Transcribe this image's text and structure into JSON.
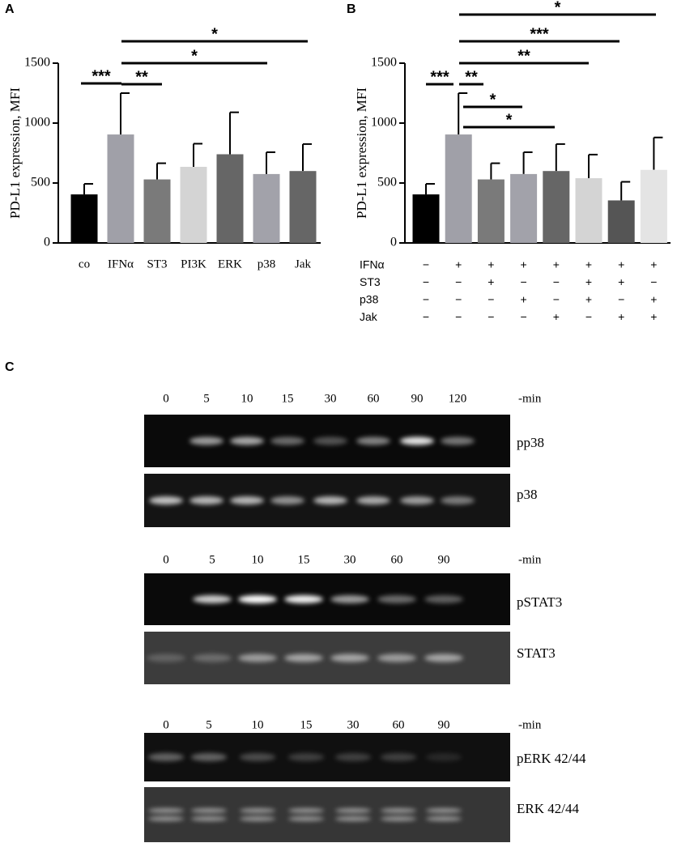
{
  "chart_data": [
    {
      "type": "bar",
      "panel": "A",
      "y_label": "PD-L1 expression, MFI",
      "categories": [
        "co",
        "IFNα",
        "ST3",
        "PI3K",
        "ERK",
        "p38",
        "Jak"
      ],
      "values": [
        405,
        905,
        530,
        635,
        740,
        575,
        600
      ],
      "errors": [
        88,
        345,
        135,
        193,
        350,
        182,
        225
      ],
      "colors": [
        "#000000",
        "#a0a0a8",
        "#7a7a7a",
        "#d4d4d4",
        "#666666",
        "#a2a2aa",
        "#666666"
      ],
      "ylim": [
        0,
        1500
      ],
      "yticks": [
        0,
        500,
        1000,
        1500
      ],
      "significance": [
        "***",
        "**",
        "*",
        "*"
      ]
    },
    {
      "type": "bar",
      "panel": "B",
      "y_label": "PD-L1 expression, MFI",
      "categories": [
        null,
        null,
        null,
        null,
        null,
        null,
        null,
        null
      ],
      "values": [
        405,
        905,
        530,
        575,
        600,
        540,
        355,
        610
      ],
      "errors": [
        88,
        345,
        135,
        182,
        225,
        197,
        155,
        270
      ],
      "colors": [
        "#000000",
        "#a0a0a8",
        "#7a7a7a",
        "#a2a2aa",
        "#666666",
        "#d4d4d4",
        "#555555",
        "#e4e4e4"
      ],
      "ylim": [
        0,
        1500
      ],
      "yticks": [
        0,
        500,
        1000,
        1500
      ],
      "significance": [
        "***",
        "**",
        "*",
        "*",
        "**",
        "***",
        "*"
      ],
      "treatments": [
        {
          "name": "IFNα",
          "marks": [
            "−",
            "+",
            "+",
            "+",
            "+",
            "+",
            "+",
            "+"
          ]
        },
        {
          "name": "ST3",
          "marks": [
            "−",
            "−",
            "+",
            "−",
            "−",
            "+",
            "+",
            "−"
          ]
        },
        {
          "name": "p38",
          "marks": [
            "−",
            "−",
            "−",
            "+",
            "−",
            "+",
            "−",
            "+"
          ]
        },
        {
          "name": "Jak",
          "marks": [
            "−",
            "−",
            "−",
            "−",
            "+",
            "−",
            "+",
            "+"
          ]
        }
      ]
    }
  ],
  "blots": {
    "panel": "C",
    "sets": [
      {
        "times": [
          "0",
          "5",
          "10",
          "15",
          "30",
          "60",
          "90",
          "120"
        ],
        "unit": "-min",
        "proteins": [
          "pp38",
          "p38"
        ]
      },
      {
        "times": [
          "0",
          "5",
          "10",
          "15",
          "30",
          "60",
          "90"
        ],
        "unit": "-min",
        "proteins": [
          "pSTAT3",
          "STAT3"
        ]
      },
      {
        "times": [
          "0",
          "5",
          "10",
          "15",
          "30",
          "60",
          "90"
        ],
        "unit": "-min",
        "proteins": [
          "pERK 42/44",
          "ERK 42/44"
        ]
      }
    ]
  }
}
